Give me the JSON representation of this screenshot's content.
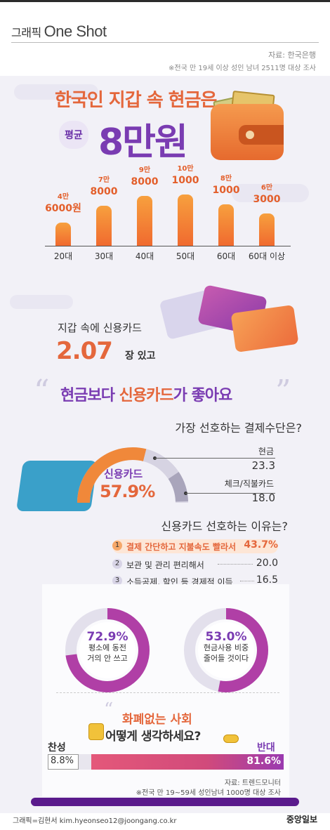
{
  "header": {
    "brand_prefix": "그래픽",
    "brand_name": "One Shot",
    "source": "자료: 한국은행",
    "survey_note": "※전국 만 19세 이상 성인 남녀 2511명 대상 조사"
  },
  "hero": {
    "title": "한국인 지갑 속 현금은",
    "avg_label": "평균",
    "amount": "8만원"
  },
  "chart_data": {
    "type": "bar",
    "categories": [
      "20대",
      "30대",
      "40대",
      "50대",
      "60대",
      "60대 이상"
    ],
    "values": [
      46000,
      78000,
      98000,
      101000,
      81000,
      63000
    ],
    "value_labels": [
      {
        "top": "4만",
        "bottom": "6000원"
      },
      {
        "top": "7만",
        "bottom": "8000"
      },
      {
        "top": "9만",
        "bottom": "8000"
      },
      {
        "top": "10만",
        "bottom": "1000"
      },
      {
        "top": "8만",
        "bottom": "1000"
      },
      {
        "top": "6만",
        "bottom": "3000"
      }
    ],
    "ylim": [
      0,
      110000
    ],
    "grid": false
  },
  "cards": {
    "text": "지갑 속에 신용카드",
    "count": "2.07",
    "unit": "장 있고"
  },
  "headline": {
    "part1": "현금보다 ",
    "part2": "신용카드",
    "part3": "가 좋아요"
  },
  "payment": {
    "question": "가장 선호하는 결제수단은?",
    "main_label": "신용카드",
    "main_value": "57.9%",
    "main_share": 57.9,
    "items": [
      {
        "name": "현금",
        "value": "23.3",
        "share": 23.3
      },
      {
        "name": "체크/직불카드",
        "value": "18.0",
        "share": 18.0
      }
    ]
  },
  "reasons": {
    "question": "신용카드 선호하는 이유는?",
    "items": [
      {
        "num": "1",
        "text": "결제 간단하고 지불속도 빨라서",
        "value": "43.7%"
      },
      {
        "num": "2",
        "text": "보관 및 관리 편리해서",
        "value": "20.0"
      },
      {
        "num": "3",
        "text": "소득공제, 할인 등 경제적 이득",
        "value": "16.5"
      }
    ]
  },
  "circles": [
    {
      "pct": "72.9%",
      "share": 72.9,
      "line1": "평소에 동전",
      "line2": "거의 안 쓰고"
    },
    {
      "pct": "53.0%",
      "share": 53.0,
      "line1": "현금사용 비중",
      "line2": "줄어들 것이다"
    }
  ],
  "cashless": {
    "title1": "화폐없는 사회",
    "title2": "어떻게 생각하세요?",
    "agree_label": "찬성",
    "disagree_label": "반대",
    "agree_value": "8.8%",
    "disagree_value": "81.6%",
    "agree_share": 8.8,
    "disagree_share": 81.6,
    "source": "자료: 트렌드모니터",
    "survey_note": "※전국 만 19~59세 성인남녀 1000명 대상 조사"
  },
  "footer": {
    "credit": "그래픽=김현서 kim.hyeonseo12@joongang.co.kr",
    "publisher": "중앙일보"
  },
  "colors": {
    "orange": "#e4673c",
    "purple": "#7a3cb2",
    "pink": "#d14a7b"
  }
}
